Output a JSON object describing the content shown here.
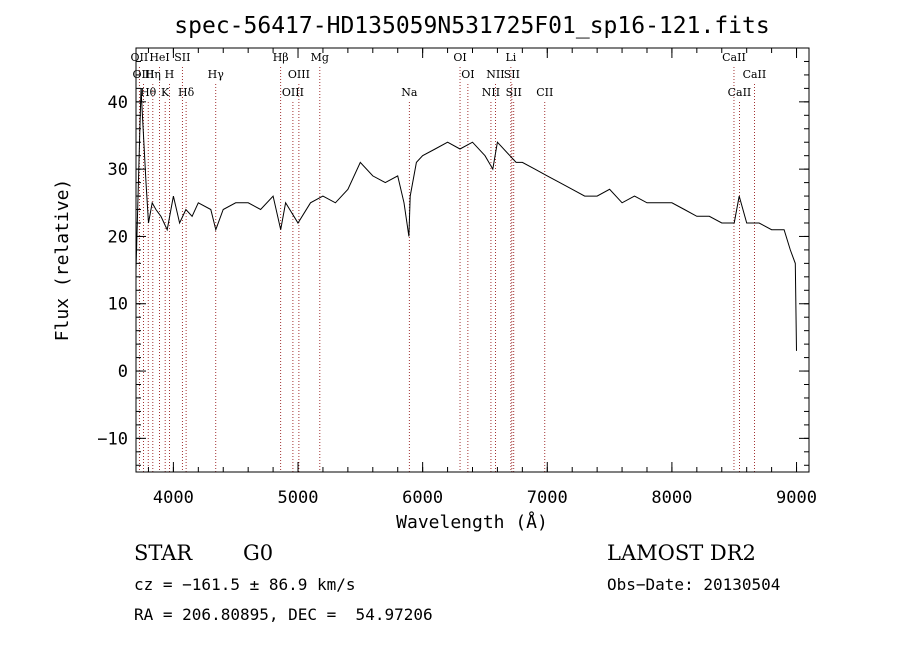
{
  "chart_data": {
    "type": "line",
    "title": "spec-56417-HD135059N531725F01_sp16-121.fits",
    "xlabel": "Wavelength (Å)",
    "ylabel": "Flux (relative)",
    "xlim": [
      3700,
      9100
    ],
    "ylim": [
      -15,
      48
    ],
    "xticks": [
      4000,
      5000,
      6000,
      7000,
      8000,
      9000
    ],
    "yticks": [
      -10,
      0,
      10,
      20,
      30,
      40
    ],
    "x": [
      3700,
      3740,
      3760,
      3780,
      3800,
      3830,
      3860,
      3900,
      3950,
      4000,
      4050,
      4100,
      4150,
      4200,
      4300,
      4340,
      4400,
      4500,
      4600,
      4700,
      4800,
      4861,
      4900,
      5000,
      5100,
      5200,
      5300,
      5400,
      5500,
      5600,
      5700,
      5800,
      5850,
      5890,
      5900,
      5950,
      6000,
      6100,
      6200,
      6300,
      6400,
      6500,
      6563,
      6600,
      6700,
      6750,
      6800,
      6900,
      7000,
      7100,
      7200,
      7300,
      7400,
      7500,
      7600,
      7700,
      7800,
      7900,
      8000,
      8100,
      8200,
      8300,
      8400,
      8500,
      8540,
      8600,
      8700,
      8800,
      8900,
      8950,
      8990,
      9000
    ],
    "y": [
      15,
      42,
      35,
      28,
      22,
      25,
      24,
      23,
      21,
      26,
      22,
      24,
      23,
      25,
      24,
      21,
      24,
      25,
      25,
      24,
      26,
      21,
      25,
      22,
      25,
      26,
      25,
      27,
      31,
      29,
      28,
      29,
      25,
      20,
      26,
      31,
      32,
      33,
      34,
      33,
      34,
      32,
      30,
      34,
      32,
      31,
      31,
      30,
      29,
      28,
      27,
      26,
      26,
      27,
      25,
      26,
      25,
      25,
      25,
      24,
      23,
      23,
      22,
      22,
      26,
      22,
      22,
      21,
      21,
      18,
      16,
      3
    ],
    "line_markers": [
      {
        "label": "OII",
        "x": 3727,
        "row": 0
      },
      {
        "label": "HeI",
        "x": 3889,
        "row": 0
      },
      {
        "label": "SII",
        "x": 4072,
        "row": 0
      },
      {
        "label": "Hβ",
        "x": 4861,
        "row": 0
      },
      {
        "label": "Mg",
        "x": 5175,
        "row": 0
      },
      {
        "label": "OI",
        "x": 6300,
        "row": 0
      },
      {
        "label": "Li",
        "x": 6708,
        "row": 0
      },
      {
        "label": "CaII",
        "x": 8498,
        "row": 0
      },
      {
        "label": "OIII",
        "x": 3760,
        "row": 1
      },
      {
        "label": "Hη",
        "x": 3835,
        "row": 1
      },
      {
        "label": "H",
        "x": 3968,
        "row": 1
      },
      {
        "label": "Hγ",
        "x": 4340,
        "row": 1
      },
      {
        "label": "OIII",
        "x": 5007,
        "row": 1
      },
      {
        "label": "OI",
        "x": 6363,
        "row": 1
      },
      {
        "label": "NII",
        "x": 6584,
        "row": 1
      },
      {
        "label": "SII",
        "x": 6716,
        "row": 1
      },
      {
        "label": "CaII",
        "x": 8662,
        "row": 1
      },
      {
        "label": "Hθ",
        "x": 3798,
        "row": 2
      },
      {
        "label": "K",
        "x": 3934,
        "row": 2
      },
      {
        "label": "Hδ",
        "x": 4102,
        "row": 2
      },
      {
        "label": "OIII",
        "x": 4959,
        "row": 2
      },
      {
        "label": "Na",
        "x": 5893,
        "row": 2
      },
      {
        "label": "NII",
        "x": 6548,
        "row": 2
      },
      {
        "label": "SII",
        "x": 6731,
        "row": 2
      },
      {
        "label": "CII",
        "x": 6980,
        "row": 2
      },
      {
        "label": "CaII",
        "x": 8542,
        "row": 2
      }
    ]
  },
  "footer": {
    "object_class": "STAR",
    "subclass": "G0",
    "survey": "LAMOST DR2",
    "redshift": "cz = −161.5 ± 86.9 km/s",
    "obs_date": "Obs−Date: 20130504",
    "coords": "RA = 206.80895, DEC =  54.97206"
  },
  "colors": {
    "spectrum": "#000000",
    "marker_line": "#8b0000",
    "axes": "#000000"
  }
}
